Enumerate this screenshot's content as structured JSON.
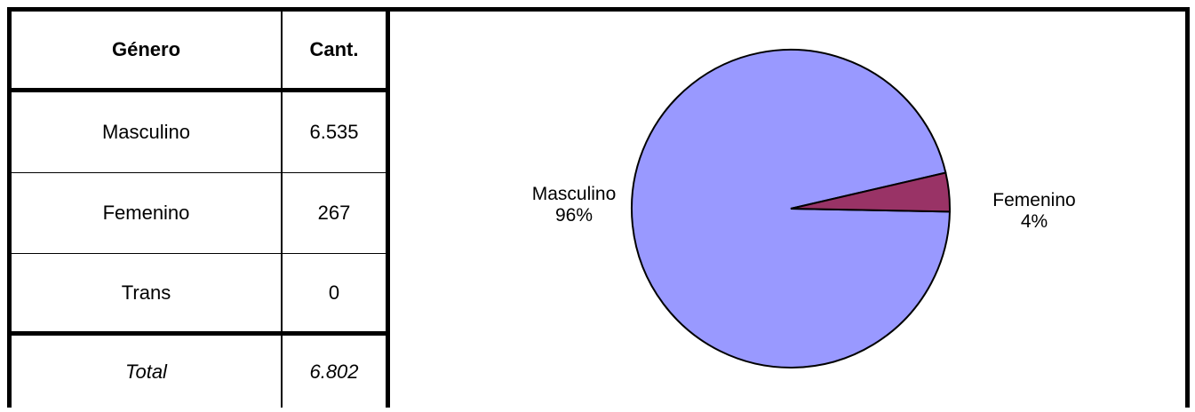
{
  "table": {
    "headers": [
      "Género",
      "Cant."
    ],
    "rows": [
      {
        "label": "Masculino",
        "value": "6.535"
      },
      {
        "label": "Femenino",
        "value": "267"
      },
      {
        "label": "Trans",
        "value": "0"
      }
    ],
    "total": {
      "label": "Total",
      "value": "6.802"
    }
  },
  "chart_data": {
    "type": "pie",
    "categories": [
      "Masculino",
      "Femenino"
    ],
    "values": [
      6535,
      267
    ],
    "labels": [
      {
        "name": "Masculino",
        "pct": "96%"
      },
      {
        "name": "Femenino",
        "pct": "4%"
      }
    ],
    "colors": [
      "#9999FF",
      "#993366"
    ]
  }
}
